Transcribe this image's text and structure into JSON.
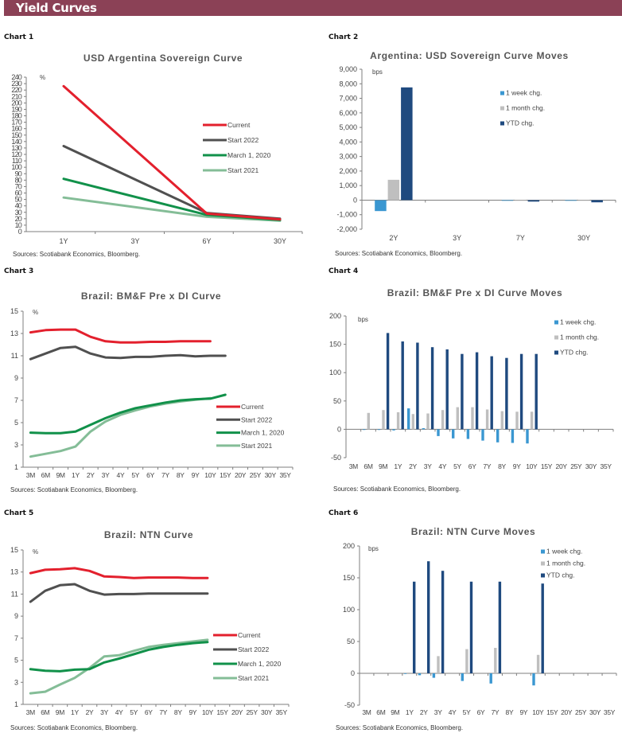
{
  "header": {
    "title": "Yield Curves",
    "color": "#8b4156"
  },
  "source": "Sources: Scotiabank Economics, Bloomberg.",
  "colors": {
    "current": "#e3202d",
    "start2022": "#505050",
    "march2020": "#11914a",
    "start2021": "#84bd97",
    "week": "#3a97d1",
    "month": "#bfbfbf",
    "ytd": "#1f4a7f"
  },
  "chart_data": [
    {
      "label": "Chart 1",
      "type": "line",
      "title": "USD Argentina Sovereign Curve",
      "ylabel": "%",
      "xlabel": "",
      "ylim": [
        0,
        240
      ],
      "ystep": 10,
      "categories": [
        "1Y",
        "3Y",
        "6Y",
        "30Y"
      ],
      "legend_position": "right",
      "series": [
        {
          "name": "Current",
          "color_key": "current",
          "values": [
            226,
            null,
            28,
            19
          ]
        },
        {
          "name": "Start 2022",
          "color_key": "start2022",
          "values": [
            133,
            null,
            29,
            20
          ]
        },
        {
          "name": "March 1, 2020",
          "color_key": "march2020",
          "values": [
            82,
            null,
            26,
            18
          ]
        },
        {
          "name": "Start 2021",
          "color_key": "start2021",
          "values": [
            53,
            null,
            23,
            17
          ]
        }
      ]
    },
    {
      "label": "Chart 2",
      "type": "bar",
      "title": "Argentina: USD Sovereign Curve Moves",
      "ylabel": "bps",
      "ylim": [
        -2000,
        9000
      ],
      "ystep": 1000,
      "categories": [
        "2Y",
        "3Y",
        "7Y",
        "30Y"
      ],
      "legend_position": "top-right",
      "series": [
        {
          "name": "1 week chg.",
          "color_key": "week",
          "values": [
            -750,
            0,
            -30,
            -30
          ]
        },
        {
          "name": "1 month chg.",
          "color_key": "month",
          "values": [
            1400,
            0,
            -20,
            -20
          ]
        },
        {
          "name": "YTD chg.",
          "color_key": "ytd",
          "values": [
            7750,
            0,
            -100,
            -150
          ]
        }
      ]
    },
    {
      "label": "Chart 3",
      "type": "line",
      "title": "Brazil: BM&F Pre x DI Curve",
      "ylabel": "%",
      "ylim": [
        1,
        15
      ],
      "ystep": 2,
      "categories": [
        "3M",
        "6M",
        "9M",
        "1Y",
        "2Y",
        "3Y",
        "4Y",
        "5Y",
        "6Y",
        "7Y",
        "8Y",
        "9Y",
        "10Y",
        "15Y",
        "20Y",
        "25Y",
        "30Y",
        "35Y"
      ],
      "legend_position": "bottom-right",
      "series": [
        {
          "name": "Current",
          "color_key": "current",
          "values": [
            13.1,
            13.3,
            13.35,
            13.35,
            12.7,
            12.3,
            12.2,
            12.2,
            12.25,
            12.25,
            12.3,
            12.3,
            12.3,
            null,
            null,
            null,
            null,
            null
          ]
        },
        {
          "name": "Start 2022",
          "color_key": "start2022",
          "values": [
            10.7,
            11.2,
            11.7,
            11.8,
            11.2,
            10.85,
            10.8,
            10.9,
            10.9,
            11.0,
            11.05,
            10.95,
            11.0,
            11.0,
            null,
            null,
            null,
            null
          ]
        },
        {
          "name": "March 1, 2020",
          "color_key": "march2020",
          "values": [
            4.1,
            4.05,
            4.05,
            4.2,
            4.8,
            5.4,
            5.9,
            6.3,
            6.55,
            6.8,
            7.0,
            7.1,
            7.15,
            7.5,
            null,
            null,
            null,
            null
          ]
        },
        {
          "name": "Start 2021",
          "color_key": "start2021",
          "values": [
            1.95,
            2.2,
            2.45,
            2.85,
            4.2,
            5.1,
            5.7,
            6.1,
            6.45,
            6.7,
            6.9,
            7.05,
            7.2,
            null,
            null,
            null,
            null,
            null
          ]
        }
      ]
    },
    {
      "label": "Chart 4",
      "type": "bar",
      "title": "Brazil: BM&F Pre x DI Curve Moves",
      "ylabel": "bps",
      "ylim": [
        -50,
        200
      ],
      "ystep": 50,
      "categories": [
        "3M",
        "6M",
        "9M",
        "1Y",
        "2Y",
        "3Y",
        "4Y",
        "5Y",
        "6Y",
        "7Y",
        "8Y",
        "9Y",
        "10Y",
        "15Y",
        "20Y",
        "25Y",
        "30Y",
        "35Y"
      ],
      "legend_position": "top-right",
      "series": [
        {
          "name": "1 week chg.",
          "color_key": "week",
          "values": [
            0,
            -1,
            -1,
            -2,
            37,
            2,
            -12,
            -16,
            -17,
            -20,
            -23,
            -24,
            -25,
            0,
            0,
            0,
            0,
            0
          ]
        },
        {
          "name": "1 month chg.",
          "color_key": "month",
          "values": [
            0,
            29,
            34,
            30,
            27,
            28,
            34,
            39,
            39,
            35,
            32,
            31,
            31,
            0,
            0,
            0,
            0,
            0
          ]
        },
        {
          "name": "YTD chg.",
          "color_key": "ytd",
          "values": [
            0,
            0,
            170,
            155,
            153,
            145,
            141,
            133,
            136,
            129,
            126,
            133,
            133,
            0,
            0,
            0,
            0,
            0
          ]
        }
      ]
    },
    {
      "label": "Chart 5",
      "type": "line",
      "title": "Brazil: NTN Curve",
      "ylabel": "%",
      "ylim": [
        1,
        15
      ],
      "ystep": 2,
      "categories": [
        "3M",
        "6M",
        "9M",
        "1Y",
        "2Y",
        "3Y",
        "4Y",
        "5Y",
        "6Y",
        "7Y",
        "8Y",
        "9Y",
        "10Y",
        "15Y",
        "20Y",
        "25Y",
        "30Y",
        "35Y"
      ],
      "legend_position": "right",
      "series": [
        {
          "name": "Current",
          "color_key": "current",
          "values": [
            12.9,
            13.2,
            13.25,
            13.35,
            13.1,
            12.6,
            12.55,
            12.45,
            12.5,
            12.5,
            12.5,
            12.45,
            12.45,
            null,
            null,
            null,
            null,
            null
          ]
        },
        {
          "name": "Start 2022",
          "color_key": "start2022",
          "values": [
            10.3,
            11.3,
            11.8,
            11.9,
            11.3,
            10.95,
            11.0,
            11.0,
            11.05,
            11.05,
            11.05,
            11.05,
            11.05,
            null,
            null,
            null,
            null,
            null
          ]
        },
        {
          "name": "March 1, 2020",
          "color_key": "march2020",
          "values": [
            4.2,
            4.05,
            4.0,
            4.15,
            4.2,
            4.8,
            5.15,
            5.55,
            5.95,
            6.2,
            6.4,
            6.55,
            6.65,
            null,
            null,
            null,
            null,
            null
          ]
        },
        {
          "name": "Start 2021",
          "color_key": "start2021",
          "values": [
            2.0,
            2.15,
            2.8,
            3.4,
            4.3,
            5.35,
            5.45,
            5.85,
            6.2,
            6.4,
            6.55,
            6.7,
            6.85,
            null,
            null,
            null,
            null,
            null
          ]
        }
      ]
    },
    {
      "label": "Chart 6",
      "type": "bar",
      "title": "Brazil: NTN Curve Moves",
      "ylabel": "bps",
      "ylim": [
        -50,
        200
      ],
      "ystep": 50,
      "categories": [
        "3M",
        "6M",
        "9M",
        "1Y",
        "2Y",
        "3Y",
        "4Y",
        "5Y",
        "6Y",
        "7Y",
        "8Y",
        "9Y",
        "10Y",
        "15Y",
        "20Y",
        "25Y",
        "30Y",
        "35Y"
      ],
      "legend_position": "top-right",
      "series": [
        {
          "name": "1 week chg.",
          "color_key": "week",
          "values": [
            0,
            0,
            0,
            -1,
            -3,
            -7,
            0,
            -12,
            0,
            -16,
            0,
            0,
            -19,
            0,
            0,
            0,
            0,
            0
          ]
        },
        {
          "name": "1 month chg.",
          "color_key": "month",
          "values": [
            0,
            0,
            0,
            0,
            0,
            27,
            0,
            38,
            0,
            40,
            0,
            0,
            29,
            0,
            0,
            0,
            0,
            0
          ]
        },
        {
          "name": "YTD chg.",
          "color_key": "ytd",
          "values": [
            0,
            0,
            0,
            144,
            176,
            161,
            0,
            144,
            0,
            144,
            0,
            0,
            141,
            0,
            0,
            0,
            0,
            0
          ]
        }
      ]
    }
  ]
}
